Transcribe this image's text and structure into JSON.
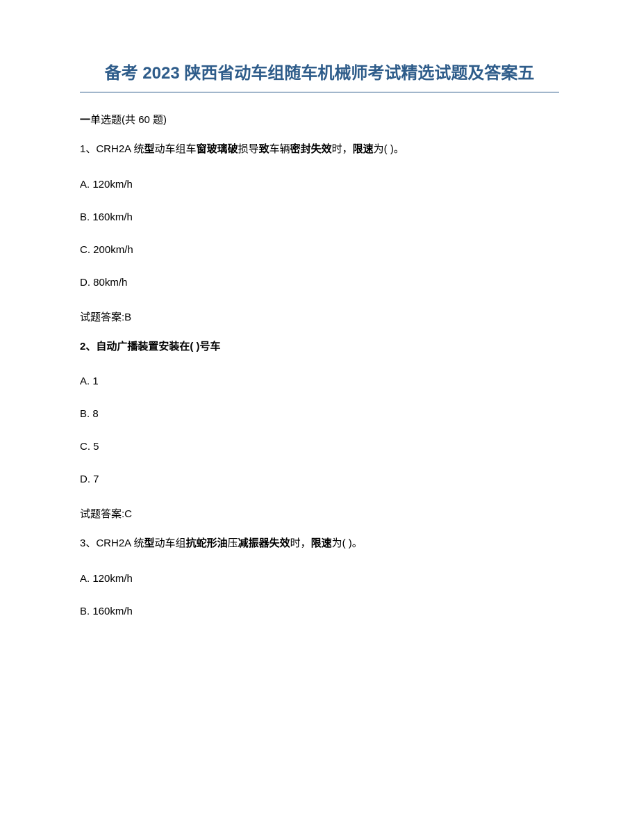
{
  "title": "备考 2023 陕西省动车组随车机械师考试精选试题及答案五",
  "section": {
    "prefix": "一",
    "label": "单选题",
    "count": "(共 60 题)"
  },
  "questions": [
    {
      "number": "1、",
      "text_parts": [
        "CRH2A 统",
        "型",
        "动车组车",
        "窗玻璃破",
        "损导",
        "致",
        "车辆",
        "密封失效",
        "时，",
        "限速",
        "为(   )。"
      ],
      "bold_indices": [
        1,
        3,
        5,
        7,
        9,
        10
      ],
      "options": [
        "A. 120km/h",
        "B. 160km/h",
        "C. 200km/h",
        "D. 80km/h"
      ],
      "answer_label": "试题答案:",
      "answer": "B"
    },
    {
      "number": "2、",
      "text": "自动广播装置安装在(   )号车",
      "options": [
        "A. 1",
        "B. 8",
        "C. 5",
        "D. 7"
      ],
      "answer_label": "试题答案:",
      "answer": "C"
    },
    {
      "number": "3、",
      "text_parts": [
        "CRH2A 统",
        "型",
        "动车组",
        "抗蛇形油",
        "压",
        "减振器失效",
        "时，",
        "限速",
        "为(   )。"
      ],
      "bold_indices": [
        1,
        3,
        5,
        7,
        8
      ],
      "options": [
        "A. 120km/h",
        "B. 160km/h"
      ]
    }
  ]
}
